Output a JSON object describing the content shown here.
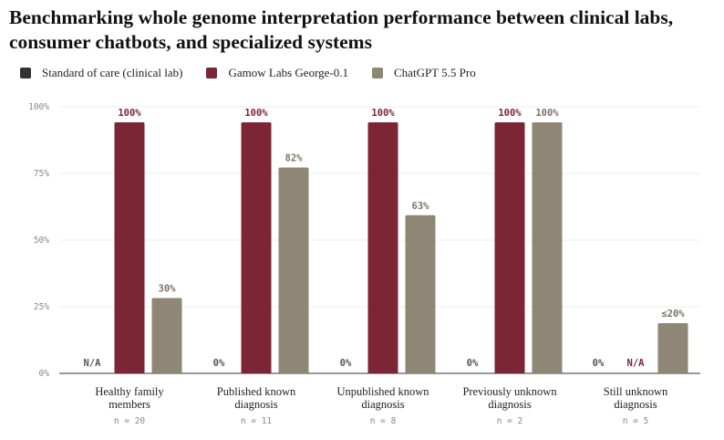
{
  "chart_data": {
    "type": "bar",
    "title": "Benchmarking whole genome interpretation performance between clinical labs, consumer chatbots, and specialized systems",
    "ylim": [
      0,
      100
    ],
    "yticks": [
      "0%",
      "25%",
      "50%",
      "75%",
      "100%"
    ],
    "ytick_values": [
      0,
      25,
      50,
      75,
      100
    ],
    "grid": true,
    "legend_position": "top-left",
    "categories": [
      {
        "lines": [
          "Healthy family",
          "members"
        ],
        "n": "n = 20"
      },
      {
        "lines": [
          "Published known",
          "diagnosis"
        ],
        "n": "n = 11"
      },
      {
        "lines": [
          "Unpublished known",
          "diagnosis"
        ],
        "n": "n = 8"
      },
      {
        "lines": [
          "Previously unknown",
          "diagnosis"
        ],
        "n": "n = 2"
      },
      {
        "lines": [
          "Still unknown",
          "diagnosis"
        ],
        "n": "n = 5"
      }
    ],
    "series": [
      {
        "name": "Standard of care (clinical lab)",
        "color": "#333333",
        "values": [
          null,
          0,
          0,
          0,
          0
        ],
        "labels": [
          "N/A",
          "0%",
          "0%",
          "0%",
          "0%"
        ],
        "label_color": "#555555"
      },
      {
        "name": "Gamow Labs George-0.1",
        "color": "#7b2535",
        "values": [
          100,
          100,
          100,
          100,
          null
        ],
        "labels": [
          "100%",
          "100%",
          "100%",
          "100%",
          "N/A"
        ],
        "label_color": "#7b2535"
      },
      {
        "name": "ChatGPT 5.5 Pro",
        "color": "#908675",
        "values": [
          30,
          82,
          63,
          100,
          20
        ],
        "labels": [
          "30%",
          "82%",
          "63%",
          "100%",
          "≤20%"
        ],
        "label_color": "#7d7466"
      }
    ]
  }
}
